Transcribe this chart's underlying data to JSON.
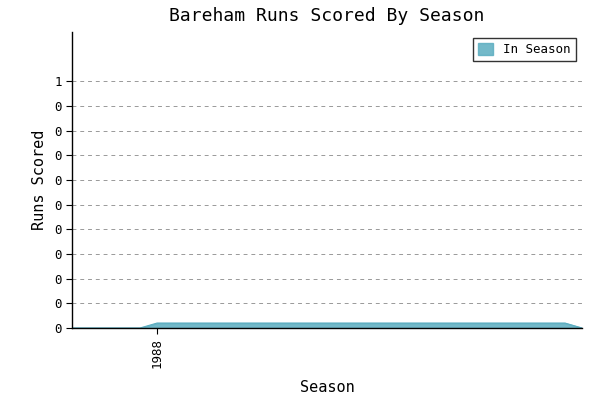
{
  "title": "Bareham Runs Scored By Season",
  "xlabel": "Season",
  "ylabel": "Runs Scored",
  "legend_label": "In Season",
  "line_color": "#5BADC0",
  "fill_color": "#5BADC0",
  "fill_alpha": 0.85,
  "background_color": "#ffffff",
  "grid_color": "#999999",
  "grid_style": "dashed",
  "font_family": "monospace",
  "seasons": [
    1983,
    1984,
    1985,
    1986,
    1987,
    1988,
    1989,
    1990,
    1991,
    1992,
    1993,
    1994,
    1995,
    1996,
    1997,
    1998,
    1999,
    2000,
    2001,
    2002,
    2003,
    2004,
    2005,
    2006,
    2007,
    2008,
    2009,
    2010,
    2011,
    2012,
    2013
  ],
  "runs": [
    0,
    0,
    0,
    0,
    0,
    0.02,
    0.02,
    0.02,
    0.02,
    0.02,
    0.02,
    0.02,
    0.02,
    0.02,
    0.02,
    0.02,
    0.02,
    0.02,
    0.02,
    0.02,
    0.02,
    0.02,
    0.02,
    0.02,
    0.02,
    0.02,
    0.02,
    0.02,
    0.02,
    0.02,
    0
  ],
  "ylim": [
    0,
    1.2
  ],
  "ytick_values": [
    0.0,
    0.1,
    0.2,
    0.3,
    0.4,
    0.5,
    0.6,
    0.7,
    0.8,
    0.9,
    1.0
  ],
  "xlim_start": 1983,
  "xlim_end": 2013,
  "xtick_pos": 1988,
  "xtick_label": "1988",
  "title_fontsize": 13,
  "axis_label_fontsize": 11,
  "tick_fontsize": 9
}
